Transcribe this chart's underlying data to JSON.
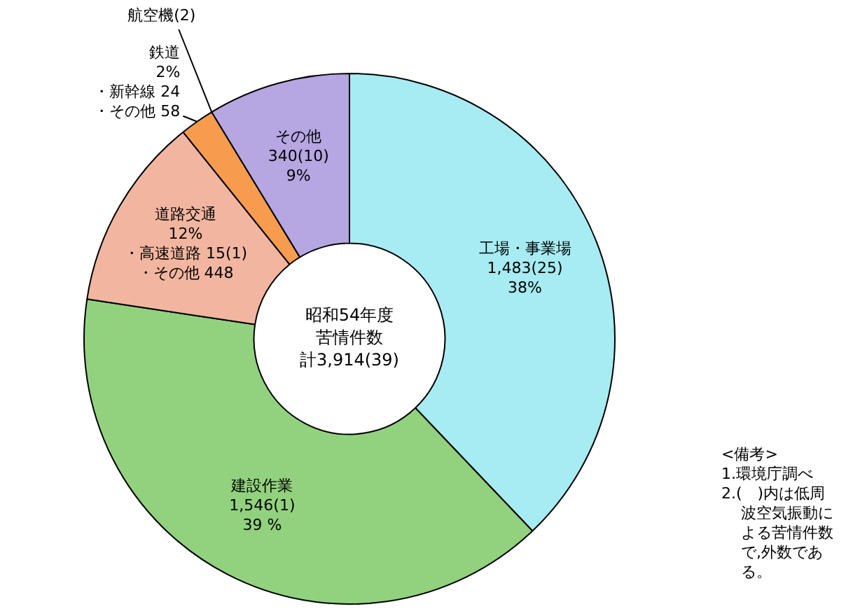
{
  "chart_data": {
    "type": "donut",
    "title": "昭和54年度苦情件数",
    "categories": [
      "工場・事業場",
      "建設作業",
      "道路交通",
      "鉄道",
      "航空機",
      "その他"
    ],
    "values": [
      1483,
      1546,
      463,
      82,
      0,
      340
    ],
    "colors": [
      "#a6ecf2",
      "#92d27e",
      "#f2b6a0",
      "#f79c4e",
      "#e8452a",
      "#b6a6e2"
    ],
    "value_labels": [
      "1,483(25)\n38%",
      "1,546(1)\n39 %",
      null,
      null,
      null,
      "340(10)\n9%"
    ],
    "annotations": [
      "計3,914(39)",
      "<備考>\n1.環境庁調べ\n2.(　)内は低周波空気振動による苦情件数で,外数である。",
      {
        "text": "12%\n・高速道路 15(1)\n・その他 448",
        "x": "道路交通"
      },
      {
        "text": "2%\n・新幹線 24\n・その他 58",
        "x": "鉄道"
      },
      {
        "text": "(2)",
        "x": "航空機"
      }
    ]
  }
}
